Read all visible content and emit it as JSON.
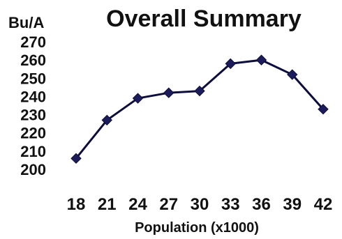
{
  "chart_data": {
    "type": "line",
    "title": "Overall Summary",
    "ylabel": "Bu/A",
    "xlabel": "Population (x1000)",
    "categories": [
      "18",
      "21",
      "24",
      "27",
      "30",
      "33",
      "36",
      "39",
      "42"
    ],
    "series": [
      {
        "values": [
          206,
          227,
          239,
          242,
          243,
          258,
          260,
          252,
          233
        ]
      }
    ],
    "ylim": [
      200,
      270
    ],
    "yticks": [
      "270",
      "260",
      "250",
      "240",
      "230",
      "220",
      "210",
      "200"
    ],
    "grid": false,
    "legend": "none",
    "marker": "diamond",
    "line_color": "#0d0d3d",
    "marker_color": "#1c1c5a"
  }
}
